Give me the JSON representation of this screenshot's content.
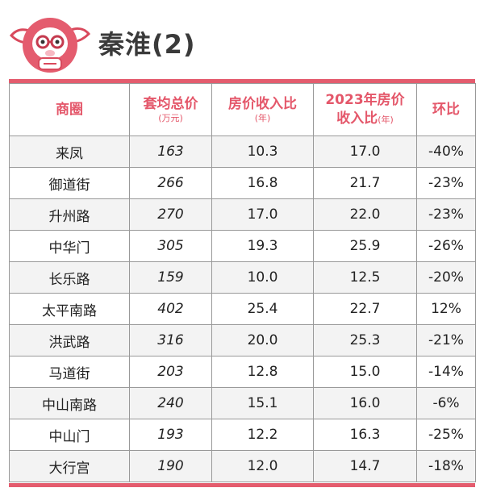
{
  "title": "秦淮(2)",
  "accent_color": "#e45c6e",
  "header_icon": "cartoon-mascot-icon",
  "table": {
    "columns": [
      {
        "label": "商圈",
        "sub": ""
      },
      {
        "label": "套均总价",
        "sub": "(万元)"
      },
      {
        "label": "房价收入比",
        "sub": "(年)"
      },
      {
        "label": "2023年房价",
        "label2": "收入比",
        "sub": "(年)"
      },
      {
        "label": "环比",
        "sub": ""
      }
    ],
    "rows": [
      {
        "area": "来凤",
        "total": "163",
        "ratio": "10.3",
        "ratio2023": "17.0",
        "mom": "-40%"
      },
      {
        "area": "御道街",
        "total": "266",
        "ratio": "16.8",
        "ratio2023": "21.7",
        "mom": "-23%"
      },
      {
        "area": "升州路",
        "total": "270",
        "ratio": "17.0",
        "ratio2023": "22.0",
        "mom": "-23%"
      },
      {
        "area": "中华门",
        "total": "305",
        "ratio": "19.3",
        "ratio2023": "25.9",
        "mom": "-26%"
      },
      {
        "area": "长乐路",
        "total": "159",
        "ratio": "10.0",
        "ratio2023": "12.5",
        "mom": "-20%"
      },
      {
        "area": "太平南路",
        "total": "402",
        "ratio": "25.4",
        "ratio2023": "22.7",
        "mom": "12%"
      },
      {
        "area": "洪武路",
        "total": "316",
        "ratio": "20.0",
        "ratio2023": "25.3",
        "mom": "-21%"
      },
      {
        "area": "马道街",
        "total": "203",
        "ratio": "12.8",
        "ratio2023": "15.0",
        "mom": "-14%"
      },
      {
        "area": "中山南路",
        "total": "240",
        "ratio": "15.1",
        "ratio2023": "16.0",
        "mom": "-6%"
      },
      {
        "area": "中山门",
        "total": "193",
        "ratio": "12.2",
        "ratio2023": "16.3",
        "mom": "-25%"
      },
      {
        "area": "大行宫",
        "total": "190",
        "ratio": "12.0",
        "ratio2023": "14.7",
        "mom": "-18%"
      }
    ]
  }
}
